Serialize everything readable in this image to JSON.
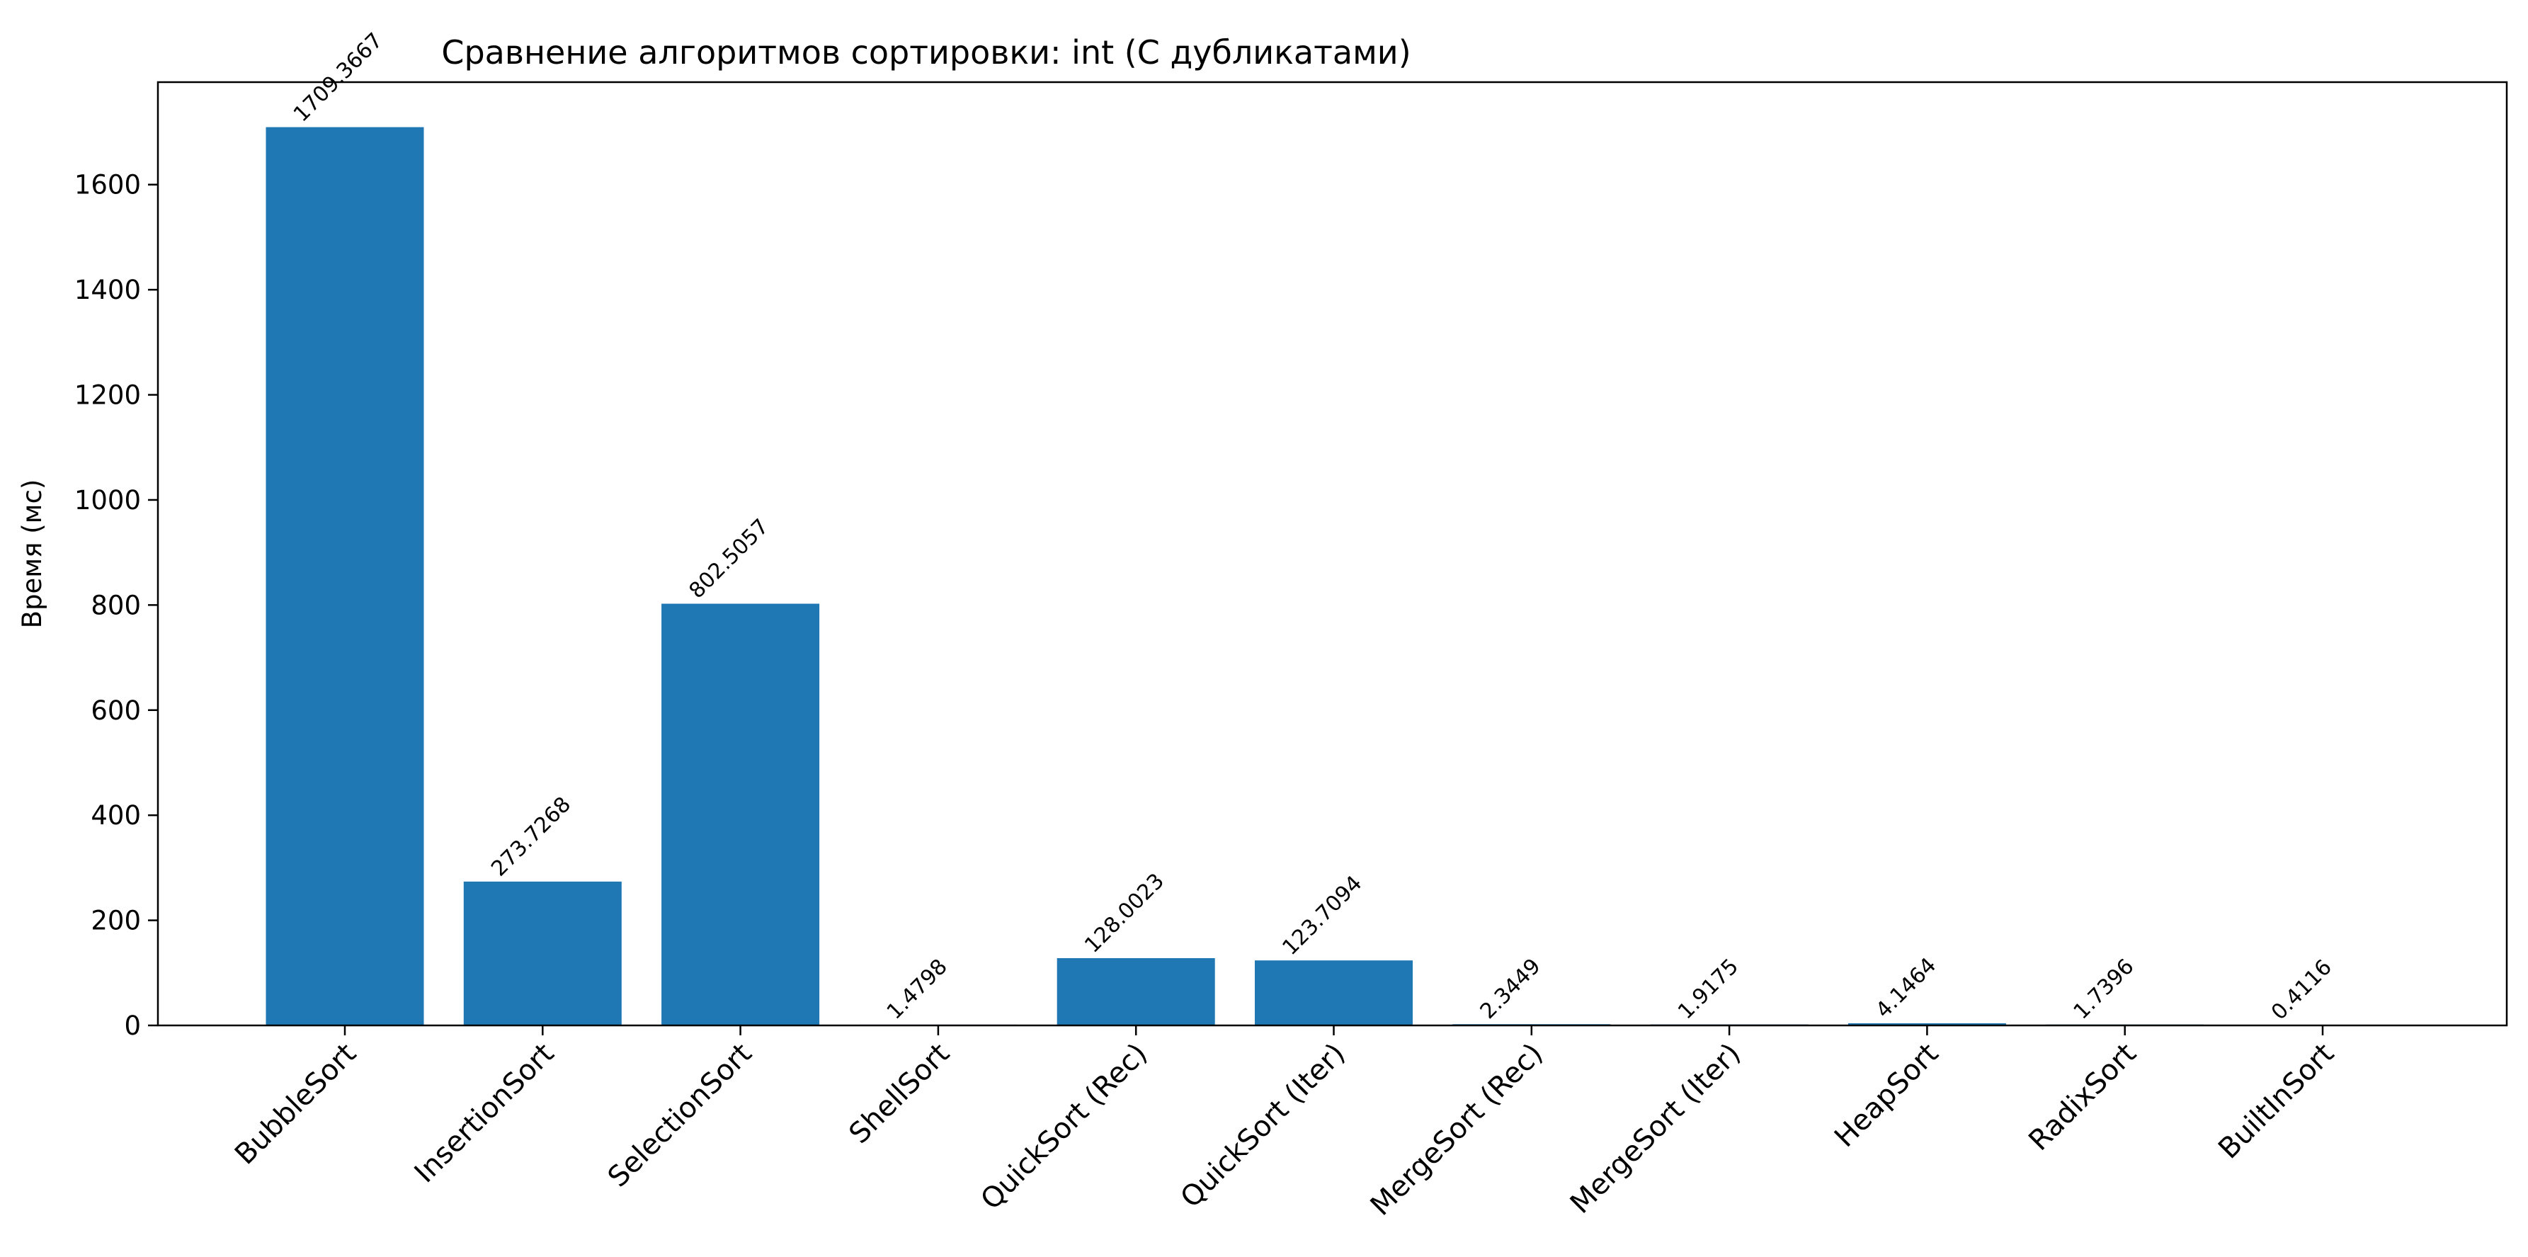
{
  "chart_data": {
    "type": "bar",
    "title": "Сравнение алгоритмов сортировки: int (С дубликатами)",
    "xlabel": "",
    "ylabel": "Время (мс)",
    "ylim": [
      0,
      1795
    ],
    "yticks": [
      0,
      200,
      400,
      600,
      800,
      1000,
      1200,
      1400,
      1600
    ],
    "grid": false,
    "legend": "none",
    "bar_color": "#1f77b4",
    "categories": [
      "BubbleSort",
      "InsertionSort",
      "SelectionSort",
      "ShellSort",
      "QuickSort (Rec)",
      "QuickSort (Iter)",
      "MergeSort (Rec)",
      "MergeSort (Iter)",
      "HeapSort",
      "RadixSort",
      "BuiltInSort"
    ],
    "values": [
      1709.3667,
      273.7268,
      802.5057,
      1.4798,
      128.0023,
      123.7094,
      2.3449,
      1.9175,
      4.1464,
      1.7396,
      0.4116
    ],
    "value_labels": [
      "1709.3667",
      "273.7268",
      "802.5057",
      "1.4798",
      "128.0023",
      "123.7094",
      "2.3449",
      "1.9175",
      "4.1464",
      "1.7396",
      "0.4116"
    ]
  }
}
